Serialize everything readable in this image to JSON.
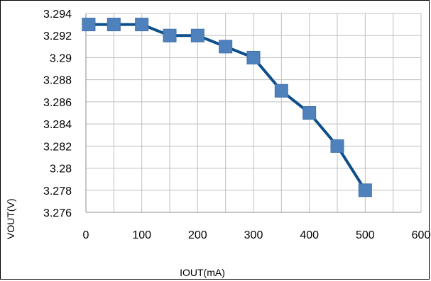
{
  "chart_data": {
    "type": "line",
    "xlabel": "IOUT(mA)",
    "ylabel": "VOUT(V)",
    "xlim": [
      0,
      600
    ],
    "ylim": [
      3.276,
      3.294
    ],
    "x_ticks": [
      0,
      100,
      200,
      300,
      400,
      500,
      600
    ],
    "x_tick_labels": [
      "0",
      "100",
      "200",
      "300",
      "400",
      "500",
      "600"
    ],
    "y_ticks": [
      3.276,
      3.278,
      3.28,
      3.282,
      3.284,
      3.286,
      3.288,
      3.29,
      3.292,
      3.294
    ],
    "y_tick_labels": [
      "3.276",
      "3.278",
      "3.28",
      "3.282",
      "3.284",
      "3.286",
      "3.288",
      "3.29",
      "3.292",
      "3.294"
    ],
    "x_minor_grid_step": 50,
    "grid": true,
    "legend": "none",
    "marker": "square",
    "series": [
      {
        "x": [
          5,
          50,
          100,
          150,
          200,
          250,
          300,
          350,
          400,
          450,
          500
        ],
        "y": [
          3.293,
          3.293,
          3.293,
          3.292,
          3.292,
          3.291,
          3.29,
          3.287,
          3.285,
          3.282,
          3.278
        ],
        "line_color": "#0d4f8b",
        "marker_color": "#4f81bd"
      }
    ]
  }
}
